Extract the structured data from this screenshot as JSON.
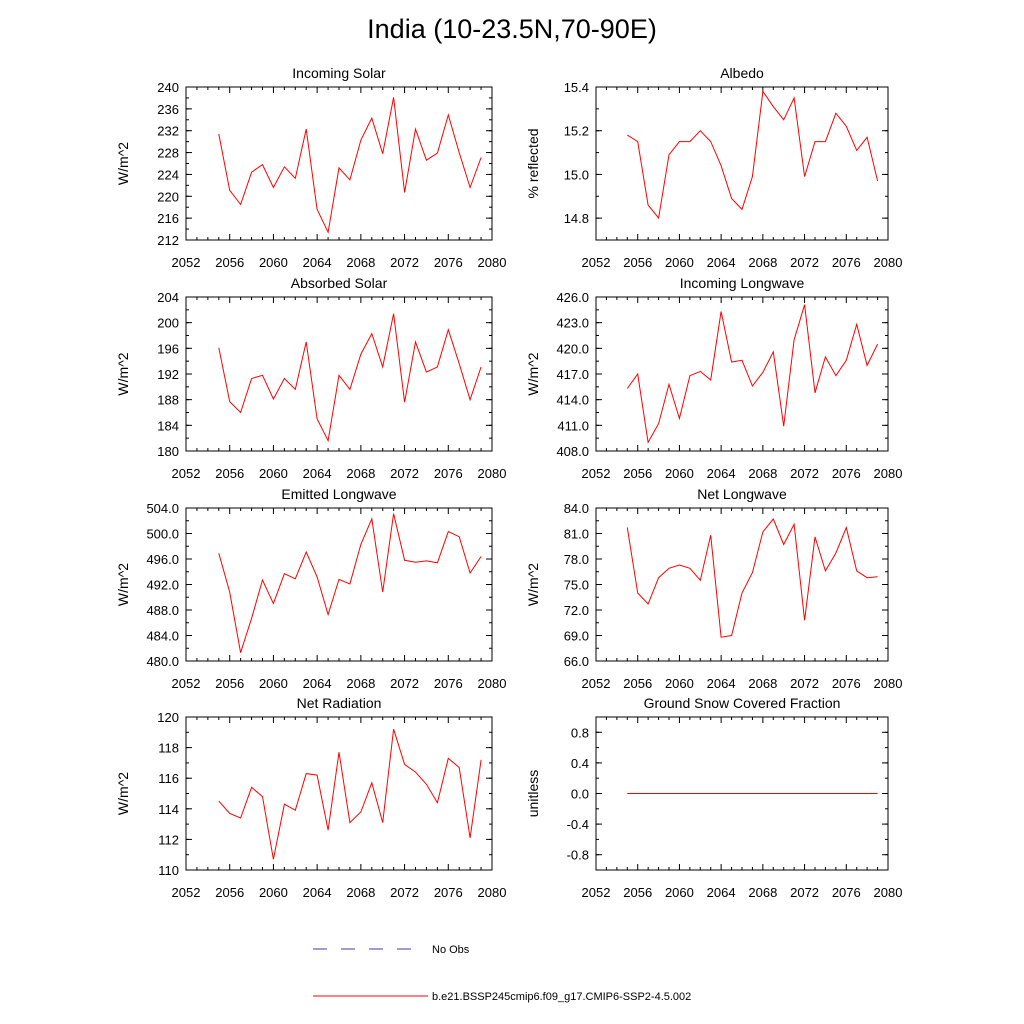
{
  "title": "India (10-23.5N,70-90E)",
  "legend": {
    "entries": [
      {
        "label": "No Obs",
        "style": "dashed",
        "color": "#3b3bb3"
      },
      {
        "label": "b.e21.BSSP245cmip6.f09_g17.CMIP6-SSP2-4.5.002",
        "style": "solid",
        "color": "#ff0000"
      }
    ]
  },
  "chart_data": [
    {
      "type": "line",
      "title": "Incoming Solar",
      "ylabel": "W/m^2",
      "xlim": [
        2052,
        2080
      ],
      "ylim": [
        212,
        240
      ],
      "xticks": [
        "2052",
        "2056",
        "2060",
        "2064",
        "2068",
        "2072",
        "2076",
        "2080"
      ],
      "yticks": [
        "212",
        "216",
        "220",
        "224",
        "228",
        "232",
        "236",
        "240"
      ],
      "x": [
        2055,
        2056,
        2057,
        2058,
        2059,
        2060,
        2061,
        2062,
        2063,
        2064,
        2065,
        2066,
        2067,
        2068,
        2069,
        2070,
        2071,
        2072,
        2073,
        2074,
        2075,
        2076,
        2077,
        2078,
        2079
      ],
      "series": [
        {
          "color": "#ff0000",
          "values": [
            231.4,
            221.1,
            218.5,
            224.4,
            225.8,
            221.6,
            225.4,
            223.3,
            232.3,
            217.6,
            213.4,
            225.2,
            223.0,
            230.3,
            234.3,
            227.8,
            238.1,
            220.7,
            232.3,
            226.6,
            227.9,
            234.9,
            228.0,
            221.6,
            227.1
          ]
        }
      ]
    },
    {
      "type": "line",
      "title": "Albedo",
      "ylabel": "% reflected",
      "xlim": [
        2052,
        2080
      ],
      "ylim": [
        14.7,
        15.4
      ],
      "xticks": [
        "2052",
        "2056",
        "2060",
        "2064",
        "2068",
        "2072",
        "2076",
        "2080"
      ],
      "yticks": [
        "14.8",
        "15.0",
        "15.2",
        "15.4"
      ],
      "x": [
        2055,
        2056,
        2057,
        2058,
        2059,
        2060,
        2061,
        2062,
        2063,
        2064,
        2065,
        2066,
        2067,
        2068,
        2069,
        2070,
        2071,
        2072,
        2073,
        2074,
        2075,
        2076,
        2077,
        2078,
        2079
      ],
      "series": [
        {
          "color": "#ff0000",
          "values": [
            15.18,
            15.15,
            14.86,
            14.8,
            15.09,
            15.15,
            15.15,
            15.2,
            15.15,
            15.04,
            14.89,
            14.84,
            14.99,
            15.38,
            15.31,
            15.25,
            15.35,
            14.99,
            15.15,
            15.15,
            15.28,
            15.22,
            15.11,
            15.17,
            14.97
          ]
        }
      ]
    },
    {
      "type": "line",
      "title": "Absorbed Solar",
      "ylabel": "W/m^2",
      "xlim": [
        2052,
        2080
      ],
      "ylim": [
        180,
        204
      ],
      "xticks": [
        "2052",
        "2056",
        "2060",
        "2064",
        "2068",
        "2072",
        "2076",
        "2080"
      ],
      "yticks": [
        "180",
        "184",
        "188",
        "192",
        "196",
        "200",
        "204"
      ],
      "x": [
        2055,
        2056,
        2057,
        2058,
        2059,
        2060,
        2061,
        2062,
        2063,
        2064,
        2065,
        2066,
        2067,
        2068,
        2069,
        2070,
        2071,
        2072,
        2073,
        2074,
        2075,
        2076,
        2077,
        2078,
        2079
      ],
      "series": [
        {
          "color": "#ff0000",
          "values": [
            196.1,
            187.7,
            186.0,
            191.3,
            191.8,
            188.1,
            191.3,
            189.6,
            197.0,
            185.0,
            181.6,
            191.8,
            189.6,
            195.1,
            198.3,
            193.1,
            201.4,
            187.6,
            197.0,
            192.3,
            193.1,
            198.9,
            193.6,
            188.0,
            193.1
          ]
        }
      ]
    },
    {
      "type": "line",
      "title": "Incoming Longwave",
      "ylabel": "W/m^2",
      "xlim": [
        2052,
        2080
      ],
      "ylim": [
        408.0,
        426.0
      ],
      "xticks": [
        "2052",
        "2056",
        "2060",
        "2064",
        "2068",
        "2072",
        "2076",
        "2080"
      ],
      "yticks": [
        "408.0",
        "411.0",
        "414.0",
        "417.0",
        "420.0",
        "423.0",
        "426.0"
      ],
      "x": [
        2055,
        2056,
        2057,
        2058,
        2059,
        2060,
        2061,
        2062,
        2063,
        2064,
        2065,
        2066,
        2067,
        2068,
        2069,
        2070,
        2071,
        2072,
        2073,
        2074,
        2075,
        2076,
        2077,
        2078,
        2079
      ],
      "series": [
        {
          "color": "#ff0000",
          "values": [
            415.3,
            417.0,
            409.0,
            411.2,
            415.8,
            411.8,
            416.8,
            417.3,
            416.3,
            424.3,
            418.4,
            418.6,
            415.6,
            417.2,
            419.6,
            410.9,
            421.0,
            425.1,
            414.8,
            419.0,
            416.8,
            418.6,
            422.8,
            418.0,
            420.5
          ]
        }
      ]
    },
    {
      "type": "line",
      "title": "Emitted Longwave",
      "ylabel": "W/m^2",
      "xlim": [
        2052,
        2080
      ],
      "ylim": [
        480.0,
        504.0
      ],
      "xticks": [
        "2052",
        "2056",
        "2060",
        "2064",
        "2068",
        "2072",
        "2076",
        "2080"
      ],
      "yticks": [
        "480.0",
        "484.0",
        "488.0",
        "492.0",
        "496.0",
        "500.0",
        "504.0"
      ],
      "x": [
        2055,
        2056,
        2057,
        2058,
        2059,
        2060,
        2061,
        2062,
        2063,
        2064,
        2065,
        2066,
        2067,
        2068,
        2069,
        2070,
        2071,
        2072,
        2073,
        2074,
        2075,
        2076,
        2077,
        2078,
        2079
      ],
      "series": [
        {
          "color": "#ff0000",
          "values": [
            496.9,
            490.8,
            481.3,
            486.7,
            492.7,
            489.0,
            493.7,
            492.9,
            497.1,
            493.2,
            487.3,
            492.8,
            492.1,
            498.3,
            502.3,
            490.8,
            503.1,
            495.8,
            495.5,
            495.7,
            495.4,
            500.3,
            499.5,
            493.8,
            496.4
          ]
        }
      ]
    },
    {
      "type": "line",
      "title": "Net Longwave",
      "ylabel": "W/m^2",
      "xlim": [
        2052,
        2080
      ],
      "ylim": [
        66.0,
        84.0
      ],
      "xticks": [
        "2052",
        "2056",
        "2060",
        "2064",
        "2068",
        "2072",
        "2076",
        "2080"
      ],
      "yticks": [
        "66.0",
        "69.0",
        "72.0",
        "75.0",
        "78.0",
        "81.0",
        "84.0"
      ],
      "x": [
        2055,
        2056,
        2057,
        2058,
        2059,
        2060,
        2061,
        2062,
        2063,
        2064,
        2065,
        2066,
        2067,
        2068,
        2069,
        2070,
        2071,
        2072,
        2073,
        2074,
        2075,
        2076,
        2077,
        2078,
        2079
      ],
      "series": [
        {
          "color": "#ff0000",
          "values": [
            81.7,
            74.0,
            72.7,
            75.8,
            76.9,
            77.3,
            76.9,
            75.5,
            80.8,
            68.8,
            69.0,
            74.0,
            76.4,
            81.2,
            82.7,
            79.7,
            82.1,
            70.8,
            80.6,
            76.6,
            78.7,
            81.7,
            76.6,
            75.8,
            75.9
          ]
        }
      ]
    },
    {
      "type": "line",
      "title": "Net Radiation",
      "ylabel": "W/m^2",
      "xlim": [
        2052,
        2080
      ],
      "ylim": [
        110,
        120
      ],
      "xticks": [
        "2052",
        "2056",
        "2060",
        "2064",
        "2068",
        "2072",
        "2076",
        "2080"
      ],
      "yticks": [
        "110",
        "112",
        "114",
        "116",
        "118",
        "120"
      ],
      "x": [
        2055,
        2056,
        2057,
        2058,
        2059,
        2060,
        2061,
        2062,
        2063,
        2064,
        2065,
        2066,
        2067,
        2068,
        2069,
        2070,
        2071,
        2072,
        2073,
        2074,
        2075,
        2076,
        2077,
        2078,
        2079
      ],
      "series": [
        {
          "color": "#ff0000",
          "values": [
            114.5,
            113.7,
            113.4,
            115.4,
            114.8,
            110.7,
            114.3,
            113.9,
            116.3,
            116.2,
            112.6,
            117.7,
            113.1,
            113.8,
            115.7,
            113.1,
            119.2,
            116.9,
            116.4,
            115.6,
            114.4,
            117.3,
            116.7,
            112.1,
            117.2
          ]
        }
      ]
    },
    {
      "type": "line",
      "title": "Ground Snow Covered Fraction",
      "ylabel": "unitless",
      "xlim": [
        2052,
        2080
      ],
      "ylim": [
        -1.0,
        1.0
      ],
      "xticks": [
        "2052",
        "2056",
        "2060",
        "2064",
        "2068",
        "2072",
        "2076",
        "2080"
      ],
      "yticks": [
        "-0.8",
        "-0.4",
        "0.0",
        "0.4",
        "0.8"
      ],
      "x": [
        2055,
        2056,
        2057,
        2058,
        2059,
        2060,
        2061,
        2062,
        2063,
        2064,
        2065,
        2066,
        2067,
        2068,
        2069,
        2070,
        2071,
        2072,
        2073,
        2074,
        2075,
        2076,
        2077,
        2078,
        2079
      ],
      "series": [
        {
          "color": "#ff0000",
          "values": [
            0,
            0,
            0,
            0,
            0,
            0,
            0,
            0,
            0,
            0,
            0,
            0,
            0,
            0,
            0,
            0,
            0,
            0,
            0,
            0,
            0,
            0,
            0,
            0,
            0
          ]
        }
      ]
    }
  ]
}
